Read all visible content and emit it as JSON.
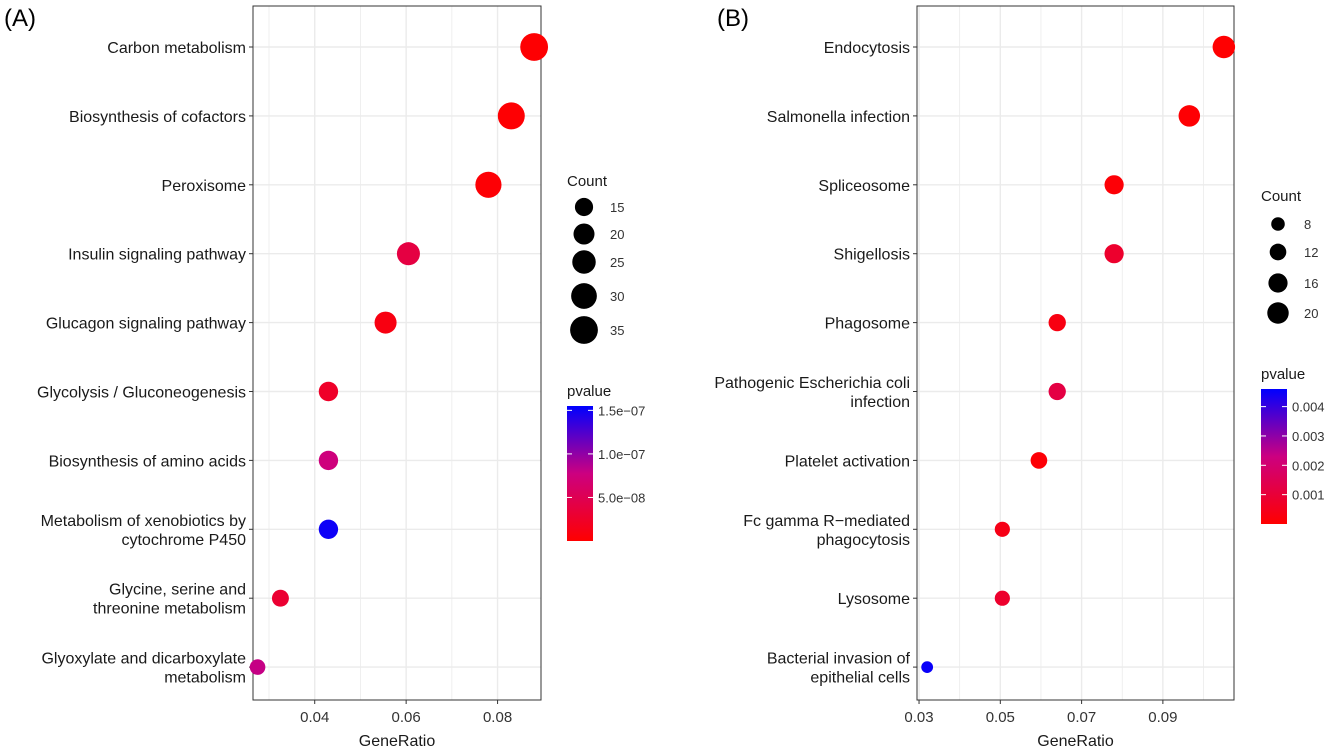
{
  "chart_data": [
    {
      "type": "scatter",
      "panel_tag": "(A)",
      "xlabel": "GeneRatio",
      "ylabel": "",
      "xlim": [
        0.0265,
        0.0895
      ],
      "xticks": [
        0.04,
        0.06,
        0.08
      ],
      "xtick_labels": [
        "0.04",
        "0.06",
        "0.08"
      ],
      "grid": true,
      "categories": [
        [
          "Carbon metabolism"
        ],
        [
          "Biosynthesis of cofactors"
        ],
        [
          "Peroxisome"
        ],
        [
          "Insulin signaling pathway"
        ],
        [
          "Glucagon signaling pathway"
        ],
        [
          "Glycolysis / Gluconeogenesis"
        ],
        [
          "Biosynthesis of amino acids"
        ],
        [
          "Metabolism of xenobiotics by",
          "cytochrome P450"
        ],
        [
          "Glycine, serine and",
          "threonine metabolism"
        ],
        [
          "Glyoxylate and dicarboxylate",
          "metabolism"
        ]
      ],
      "points": [
        {
          "x": 0.088,
          "count": 35,
          "pvalue": 1e-09
        },
        {
          "x": 0.083,
          "count": 33,
          "pvalue": 2e-09
        },
        {
          "x": 0.078,
          "count": 31,
          "pvalue": 3e-09
        },
        {
          "x": 0.0605,
          "count": 24,
          "pvalue": 4e-08
        },
        {
          "x": 0.0555,
          "count": 22,
          "pvalue": 1e-08
        },
        {
          "x": 0.043,
          "count": 17,
          "pvalue": 2.5e-08
        },
        {
          "x": 0.043,
          "count": 17,
          "pvalue": 7.5e-08
        },
        {
          "x": 0.043,
          "count": 17,
          "pvalue": 1.5e-07
        },
        {
          "x": 0.0325,
          "count": 13,
          "pvalue": 3e-08
        },
        {
          "x": 0.0275,
          "count": 11,
          "pvalue": 8e-08
        }
      ],
      "size_legend": {
        "title": "Count",
        "values": [
          15,
          20,
          25,
          30,
          35
        ],
        "labels": [
          "15",
          "20",
          "25",
          "30",
          "35"
        ]
      },
      "color_legend": {
        "title": "pvalue",
        "min": 0,
        "max": 1.55e-07,
        "ticks": [
          5e-08,
          1e-07,
          1.5e-07
        ],
        "tick_labels": [
          "5.0e−08",
          "1.0e−07",
          "1.5e−07"
        ],
        "low_color": "#ff0000",
        "high_color": "#0000ff"
      },
      "legend_position": "right"
    },
    {
      "type": "scatter",
      "panel_tag": "(B)",
      "xlabel": "GeneRatio",
      "ylabel": "",
      "xlim": [
        0.0295,
        0.1075
      ],
      "xticks": [
        0.03,
        0.05,
        0.07,
        0.09
      ],
      "xtick_labels": [
        "0.03",
        "0.05",
        "0.07",
        "0.09"
      ],
      "grid": true,
      "categories": [
        [
          "Endocytosis"
        ],
        [
          "Salmonella infection"
        ],
        [
          "Spliceosome"
        ],
        [
          "Shigellosis"
        ],
        [
          "Phagosome"
        ],
        [
          "Pathogenic Escherichia coli",
          "infection"
        ],
        [
          "Platelet activation"
        ],
        [
          "Fc gamma R−mediated",
          "phagocytosis"
        ],
        [
          "Lysosome"
        ],
        [
          "Bacterial invasion of",
          "epithelial cells"
        ]
      ],
      "points": [
        {
          "x": 0.105,
          "count": 22,
          "pvalue": 2e-05
        },
        {
          "x": 0.0965,
          "count": 20,
          "pvalue": 5e-05
        },
        {
          "x": 0.078,
          "count": 16,
          "pvalue": 0.0001
        },
        {
          "x": 0.078,
          "count": 16,
          "pvalue": 0.0008
        },
        {
          "x": 0.064,
          "count": 13,
          "pvalue": 0.0003
        },
        {
          "x": 0.064,
          "count": 13,
          "pvalue": 0.0012
        },
        {
          "x": 0.0595,
          "count": 12,
          "pvalue": 0.0001
        },
        {
          "x": 0.0505,
          "count": 10,
          "pvalue": 0.0004
        },
        {
          "x": 0.0505,
          "count": 10,
          "pvalue": 0.0008
        },
        {
          "x": 0.032,
          "count": 6,
          "pvalue": 0.0045
        }
      ],
      "size_legend": {
        "title": "Count",
        "values": [
          8,
          12,
          16,
          20
        ],
        "labels": [
          "8",
          "12",
          "16",
          "20"
        ]
      },
      "color_legend": {
        "title": "pvalue",
        "min": 0,
        "max": 0.0046,
        "ticks": [
          0.001,
          0.002,
          0.003,
          0.004
        ],
        "tick_labels": [
          "0.001",
          "0.002",
          "0.003",
          "0.004"
        ],
        "low_color": "#ff0000",
        "high_color": "#0000ff"
      },
      "legend_position": "right"
    }
  ]
}
